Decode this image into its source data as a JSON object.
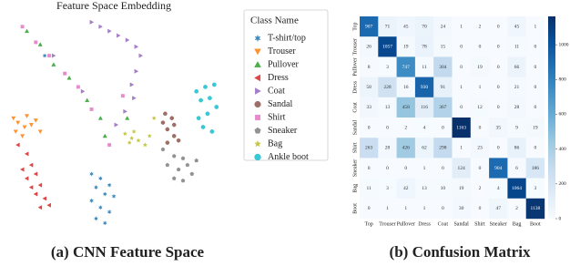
{
  "chart_data": [
    {
      "type": "scatter",
      "title": "Feature Space Embedding",
      "legend_title": "Class Name",
      "caption": "(a) CNN Feature Space",
      "series": [
        {
          "name": "T-shirt/top",
          "color": "#1f77b4",
          "marker": "asterisk",
          "x": [
            39,
            43,
            47,
            41,
            45,
            49,
            39,
            43,
            47,
            41,
            45,
            18
          ],
          "y": [
            29,
            27,
            24,
            23,
            20,
            19,
            17,
            14,
            12,
            9,
            7,
            82
          ]
        },
        {
          "name": "Trouser",
          "color": "#ff7f0e",
          "marker": "v",
          "x": [
            4,
            6,
            9,
            12,
            5,
            8,
            14,
            16,
            10
          ],
          "y": [
            54,
            52,
            50,
            51,
            48,
            46,
            53,
            48,
            55
          ]
        },
        {
          "name": "Pullover",
          "color": "#2ca02c",
          "marker": "^",
          "x": [
            10,
            16,
            22,
            29,
            37,
            43,
            45,
            55
          ],
          "y": [
            93,
            87,
            78,
            72,
            62,
            54,
            46,
            54
          ]
        },
        {
          "name": "Dress",
          "color": "#d62728",
          "marker": "<",
          "x": [
            10,
            12,
            8,
            14,
            10,
            16,
            12,
            14,
            18,
            16,
            20,
            6
          ],
          "y": [
            38,
            33,
            31,
            29,
            27,
            24,
            23,
            20,
            18,
            14,
            15,
            42
          ]
        },
        {
          "name": "Coat",
          "color": "#9467bd",
          "marker": ">",
          "x": [
            39,
            43,
            47,
            51,
            55,
            59,
            61,
            59,
            57,
            58,
            54,
            50,
            22,
            35
          ],
          "y": [
            97,
            95,
            93,
            91,
            89,
            86,
            82,
            75,
            69,
            63,
            57,
            51,
            82,
            66
          ]
        },
        {
          "name": "Sandal",
          "color": "#8c564b",
          "marker": "8",
          "x": [
            72,
            75,
            76,
            73,
            76,
            78,
            73,
            71
          ],
          "y": [
            56,
            54,
            51,
            49,
            46,
            44,
            43,
            52
          ]
        },
        {
          "name": "Shirt",
          "color": "#e377c2",
          "marker": "s",
          "x": [
            8,
            14,
            20,
            27,
            33,
            39,
            47,
            53
          ],
          "y": [
            95,
            88,
            82,
            74,
            68,
            58,
            42,
            64
          ]
        },
        {
          "name": "Sneaker",
          "color": "#7f7f7f",
          "marker": "p",
          "x": [
            71,
            76,
            80,
            73,
            78,
            82,
            76,
            80,
            84,
            86
          ],
          "y": [
            40,
            37,
            36,
            33,
            31,
            33,
            27,
            26,
            29,
            35
          ]
        },
        {
          "name": "Bag",
          "color": "#bcbd22",
          "marker": "*",
          "x": [
            54,
            57,
            60,
            63,
            56,
            58,
            67,
            65
          ],
          "y": [
            47,
            45,
            44,
            42,
            43,
            48,
            54,
            46
          ]
        },
        {
          "name": "Ankle boot",
          "color": "#17becf",
          "marker": "o",
          "x": [
            86,
            90,
            94,
            88,
            92,
            91,
            95,
            89,
            93,
            87
          ],
          "y": [
            66,
            68,
            69,
            62,
            63,
            56,
            59,
            50,
            48,
            54
          ]
        }
      ]
    },
    {
      "type": "heatmap",
      "caption": "(b) Confusion Matrix",
      "colormap": "Blues",
      "x_categories": [
        "Top",
        "Trouser",
        "Pullover",
        "Dress",
        "Coat",
        "Sandal",
        "Shirt",
        "Sneaker",
        "Bag",
        "Boot"
      ],
      "y_categories": [
        "Top",
        "Trouser",
        "Pullover",
        "Dress",
        "Coat",
        "Sandal",
        "Shirt",
        "Sneaker",
        "Bag",
        "Boot"
      ],
      "values": [
        [
          907,
          71,
          45,
          70,
          24,
          1,
          2,
          0,
          45,
          1
        ],
        [
          26,
          1057,
          19,
          78,
          15,
          0,
          0,
          0,
          11,
          0
        ],
        [
          8,
          3,
          747,
          11,
          304,
          0,
          19,
          0,
          66,
          0
        ],
        [
          58,
          228,
          16,
          930,
          91,
          1,
          1,
          0,
          21,
          0
        ],
        [
          33,
          13,
          458,
          116,
          367,
          0,
          12,
          0,
          28,
          0
        ],
        [
          0,
          0,
          2,
          4,
          0,
          1163,
          0,
          35,
          9,
          19
        ],
        [
          263,
          28,
          426,
          62,
          298,
          1,
          23,
          0,
          86,
          0
        ],
        [
          0,
          0,
          0,
          1,
          0,
          124,
          0,
          904,
          6,
          186
        ],
        [
          11,
          3,
          42,
          13,
          10,
          19,
          2,
          4,
          1064,
          3
        ],
        [
          0,
          1,
          1,
          1,
          0,
          30,
          0,
          47,
          2,
          1138
        ]
      ],
      "colorbar_ticks": [
        0,
        200,
        400,
        600,
        800,
        1000
      ]
    }
  ]
}
